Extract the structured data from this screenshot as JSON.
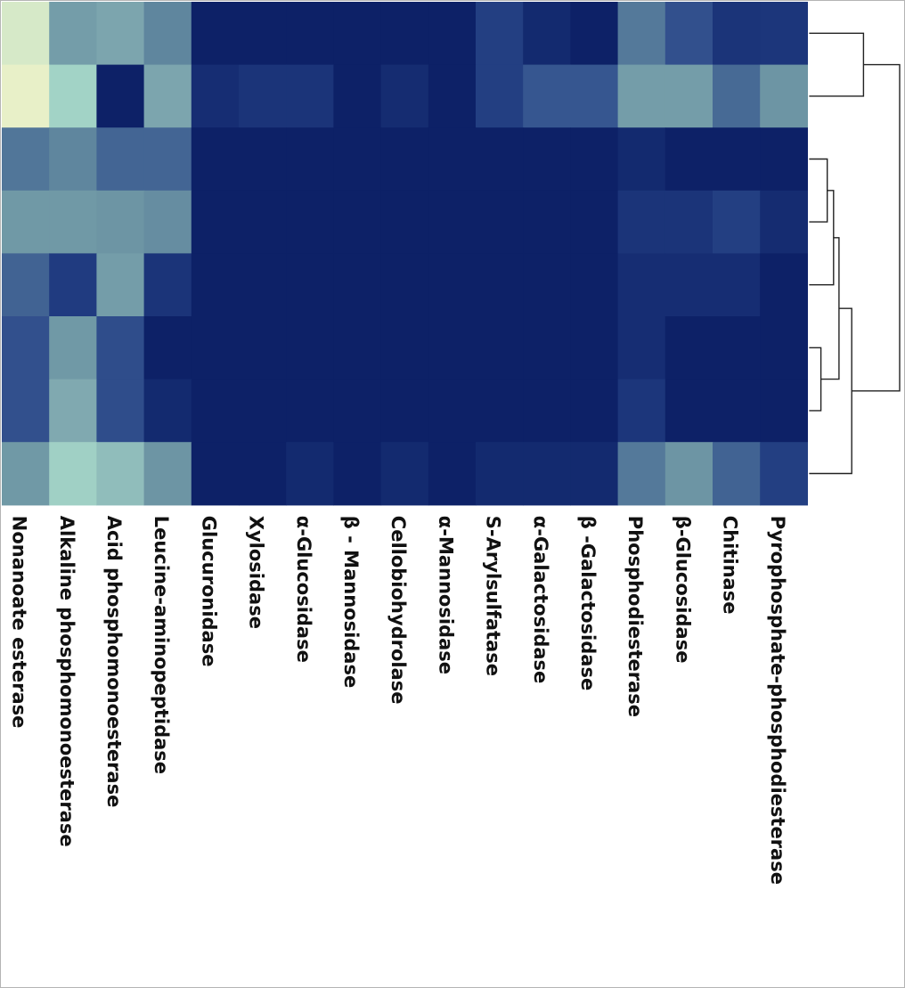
{
  "chart_data": {
    "type": "heatmap",
    "title": "",
    "xlabel": "",
    "ylabel": "",
    "colorscale": [
      "#0d2167",
      "#1f3a7f",
      "#34538f",
      "#4a6e96",
      "#6b93a3",
      "#86b0b4",
      "#a6d8c9",
      "#e8f0c8"
    ],
    "columns": [
      "Nonanoate esterase",
      "Alkaline phosphomonoesterase",
      "Acid phosphomonoesterase",
      "Leucine-aminopeptidase",
      "Glucuronidase",
      "Xylosidase",
      "α-Glucosidase",
      "β - Mannosidase",
      "Cellobiohydrolase",
      "α-Mannosidase",
      "S-Arylsulfatase",
      "α-Galactosidase",
      "β -Galactosidase",
      "Phosphodiesterase",
      "β-Glucosidase",
      "Chitinase",
      "Pyrophosphate-phosphodiesterase"
    ],
    "values": [
      [
        0.96,
        0.62,
        0.66,
        0.52,
        0.0,
        0.0,
        0.0,
        0.0,
        0.0,
        0.0,
        0.17,
        0.05,
        0.0,
        0.47,
        0.27,
        0.11,
        0.12
      ],
      [
        1.0,
        0.84,
        0.0,
        0.66,
        0.07,
        0.11,
        0.11,
        0.0,
        0.06,
        0.0,
        0.17,
        0.3,
        0.3,
        0.62,
        0.62,
        0.41,
        0.58
      ],
      [
        0.46,
        0.52,
        0.38,
        0.38,
        0.0,
        0.0,
        0.0,
        0.0,
        0.0,
        0.0,
        0.0,
        0.0,
        0.0,
        0.05,
        0.0,
        0.0,
        0.0
      ],
      [
        0.6,
        0.6,
        0.58,
        0.55,
        0.0,
        0.0,
        0.0,
        0.0,
        0.0,
        0.0,
        0.0,
        0.0,
        0.0,
        0.11,
        0.11,
        0.17,
        0.06
      ],
      [
        0.37,
        0.15,
        0.62,
        0.11,
        0.0,
        0.0,
        0.0,
        0.0,
        0.0,
        0.0,
        0.0,
        0.0,
        0.0,
        0.07,
        0.07,
        0.07,
        0.0
      ],
      [
        0.27,
        0.6,
        0.25,
        0.0,
        0.0,
        0.0,
        0.0,
        0.0,
        0.0,
        0.0,
        0.0,
        0.0,
        0.0,
        0.07,
        0.0,
        0.0,
        0.0
      ],
      [
        0.27,
        0.68,
        0.25,
        0.05,
        0.0,
        0.0,
        0.0,
        0.0,
        0.0,
        0.0,
        0.0,
        0.0,
        0.0,
        0.12,
        0.0,
        0.0,
        0.0
      ],
      [
        0.6,
        0.83,
        0.76,
        0.58,
        0.0,
        0.0,
        0.05,
        0.0,
        0.05,
        0.0,
        0.05,
        0.05,
        0.05,
        0.47,
        0.58,
        0.37,
        0.17
      ]
    ],
    "dendrogram": {
      "leaf_order": [
        0,
        1,
        2,
        3,
        4,
        5,
        6,
        7
      ],
      "merges": [
        {
          "left": "r0",
          "right": "r1",
          "height": 0.6
        },
        {
          "left": "r5",
          "right": "r6",
          "height": 0.13
        },
        {
          "left": "r2",
          "right": "r3",
          "height": 0.2
        },
        {
          "left": "m2",
          "right": "r4",
          "height": 0.27
        },
        {
          "left": "m3",
          "right": "m1",
          "height": 0.33
        },
        {
          "left": "m4",
          "right": "r7",
          "height": 0.47
        },
        {
          "left": "m0",
          "right": "m5",
          "height": 1.0
        }
      ]
    }
  }
}
